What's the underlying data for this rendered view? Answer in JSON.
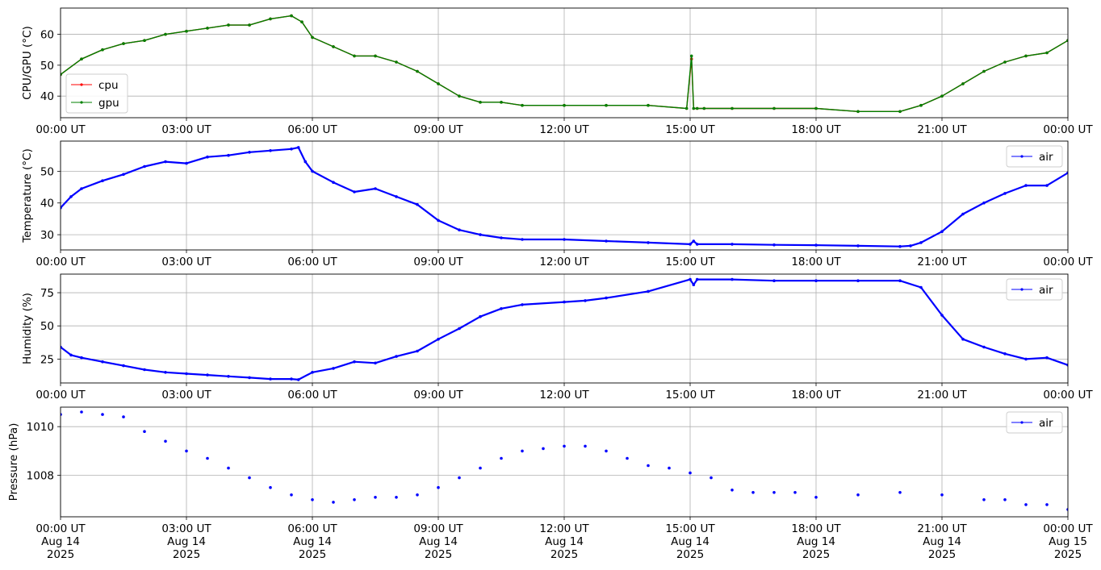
{
  "chart_data": [
    {
      "type": "line",
      "ylabel": "CPU/GPU (°C)",
      "ylim": [
        33,
        68.5
      ],
      "yticks": [
        40,
        50,
        60
      ],
      "grid": true,
      "legend_position": "lower-left",
      "x_start": "2025-08-14T00:00Z",
      "x_end": "2025-08-15T00:00Z",
      "x_tick_labels": [
        "00:00 UT",
        "03:00 UT",
        "06:00 UT",
        "09:00 UT",
        "12:00 UT",
        "15:00 UT",
        "18:00 UT",
        "21:00 UT",
        "00:00 UT"
      ],
      "series": [
        {
          "name": "cpu",
          "color": "#ff0000",
          "times": [
            "00:00",
            "00:30",
            "01:00",
            "01:30",
            "02:00",
            "02:30",
            "03:00",
            "03:30",
            "04:00",
            "04:30",
            "05:00",
            "05:30",
            "05:45",
            "06:00",
            "06:30",
            "07:00",
            "07:30",
            "08:00",
            "08:30",
            "09:00",
            "09:30",
            "10:00",
            "10:30",
            "11:00",
            "12:00",
            "13:00",
            "14:00",
            "14:55",
            "15:02",
            "15:05",
            "15:10",
            "15:20",
            "16:00",
            "17:00",
            "18:00",
            "19:00",
            "20:00",
            "20:30",
            "21:00",
            "21:30",
            "22:00",
            "22:30",
            "23:00",
            "23:30",
            "24:00"
          ],
          "values": [
            47,
            52,
            55,
            57,
            58,
            60,
            61,
            62,
            63,
            63,
            65,
            66,
            64,
            59,
            56,
            53,
            53,
            51,
            48,
            44,
            40,
            38,
            38,
            37,
            37,
            37,
            37,
            36,
            52,
            36,
            36,
            36,
            36,
            36,
            36,
            35,
            35,
            37,
            40,
            44,
            48,
            51,
            53,
            54,
            58
          ]
        },
        {
          "name": "gpu",
          "color": "#008000",
          "times": [
            "00:00",
            "00:30",
            "01:00",
            "01:30",
            "02:00",
            "02:30",
            "03:00",
            "03:30",
            "04:00",
            "04:30",
            "05:00",
            "05:30",
            "05:45",
            "06:00",
            "06:30",
            "07:00",
            "07:30",
            "08:00",
            "08:30",
            "09:00",
            "09:30",
            "10:00",
            "10:30",
            "11:00",
            "12:00",
            "13:00",
            "14:00",
            "14:55",
            "15:02",
            "15:05",
            "15:10",
            "15:20",
            "16:00",
            "17:00",
            "18:00",
            "19:00",
            "20:00",
            "20:30",
            "21:00",
            "21:30",
            "22:00",
            "22:30",
            "23:00",
            "23:30",
            "24:00"
          ],
          "values": [
            47,
            52,
            55,
            57,
            58,
            60,
            61,
            62,
            63,
            63,
            65,
            66,
            64,
            59,
            56,
            53,
            53,
            51,
            48,
            44,
            40,
            38,
            38,
            37,
            37,
            37,
            37,
            36,
            53,
            36,
            36,
            36,
            36,
            36,
            36,
            35,
            35,
            37,
            40,
            44,
            48,
            51,
            53,
            54,
            58
          ]
        }
      ]
    },
    {
      "type": "line",
      "ylabel": "Temperature (°C)",
      "ylim": [
        25.2,
        59.5
      ],
      "yticks": [
        30,
        40,
        50
      ],
      "grid": true,
      "legend_position": "upper-right",
      "x_start": "2025-08-14T00:00Z",
      "x_end": "2025-08-15T00:00Z",
      "x_tick_labels": [
        "00:00 UT",
        "03:00 UT",
        "06:00 UT",
        "09:00 UT",
        "12:00 UT",
        "15:00 UT",
        "18:00 UT",
        "21:00 UT",
        "00:00 UT"
      ],
      "series": [
        {
          "name": "air",
          "color": "#0000ff",
          "times": [
            "00:00",
            "00:15",
            "00:30",
            "01:00",
            "01:30",
            "02:00",
            "02:30",
            "03:00",
            "03:30",
            "04:00",
            "04:30",
            "05:00",
            "05:30",
            "05:40",
            "05:50",
            "06:00",
            "06:30",
            "07:00",
            "07:30",
            "08:00",
            "08:30",
            "09:00",
            "09:30",
            "10:00",
            "10:30",
            "11:00",
            "12:00",
            "13:00",
            "14:00",
            "15:00",
            "15:05",
            "15:10",
            "16:00",
            "17:00",
            "18:00",
            "19:00",
            "20:00",
            "20:15",
            "20:30",
            "21:00",
            "21:30",
            "22:00",
            "22:30",
            "23:00",
            "23:30",
            "24:00"
          ],
          "values": [
            38.5,
            42,
            44.5,
            47,
            49,
            51.5,
            53,
            52.5,
            54.5,
            55,
            56,
            56.5,
            57,
            57.5,
            53,
            50,
            46.5,
            43.5,
            44.5,
            42,
            39.5,
            34.5,
            31.5,
            30,
            29,
            28.5,
            28.5,
            28,
            27.5,
            27,
            28,
            27,
            27,
            26.8,
            26.7,
            26.5,
            26.3,
            26.5,
            27.5,
            31,
            36.5,
            40,
            43,
            45.5,
            45.5,
            49.5
          ]
        }
      ]
    },
    {
      "type": "line",
      "ylabel": "Humidity (%)",
      "ylim": [
        7,
        89
      ],
      "yticks": [
        25,
        50,
        75
      ],
      "grid": true,
      "legend_position": "upper-right",
      "x_start": "2025-08-14T00:00Z",
      "x_end": "2025-08-15T00:00Z",
      "x_tick_labels": [
        "00:00 UT",
        "03:00 UT",
        "06:00 UT",
        "09:00 UT",
        "12:00 UT",
        "15:00 UT",
        "18:00 UT",
        "21:00 UT",
        "00:00 UT"
      ],
      "series": [
        {
          "name": "air",
          "color": "#0000ff",
          "times": [
            "00:00",
            "00:15",
            "00:30",
            "01:00",
            "01:30",
            "02:00",
            "02:30",
            "03:00",
            "03:30",
            "04:00",
            "04:30",
            "05:00",
            "05:30",
            "05:40",
            "06:00",
            "06:30",
            "07:00",
            "07:30",
            "08:00",
            "08:30",
            "09:00",
            "09:30",
            "10:00",
            "10:30",
            "11:00",
            "12:00",
            "12:30",
            "13:00",
            "14:00",
            "15:00",
            "15:05",
            "15:10",
            "16:00",
            "17:00",
            "18:00",
            "19:00",
            "20:00",
            "20:30",
            "21:00",
            "21:30",
            "22:00",
            "22:30",
            "23:00",
            "23:30",
            "24:00"
          ],
          "values": [
            34,
            28,
            26,
            23,
            20,
            17,
            15,
            14,
            13,
            12,
            11,
            10,
            10,
            9.5,
            15,
            18,
            23,
            22,
            27,
            31,
            40,
            48,
            57,
            63,
            66,
            68,
            69,
            71,
            76,
            85,
            81,
            85,
            85,
            84,
            84,
            84,
            84,
            79,
            58,
            40,
            34,
            29,
            25,
            26,
            20.5
          ]
        }
      ]
    },
    {
      "type": "scatter",
      "ylabel": "Pressure (hPa)",
      "ylim": [
        1006.3,
        1010.8
      ],
      "yticks": [
        1008,
        1010
      ],
      "grid": true,
      "legend_position": "upper-right",
      "x_start": "2025-08-14T00:00Z",
      "x_end": "2025-08-15T00:00Z",
      "x_tick_labels": [
        [
          "00:00 UT",
          "Aug 14",
          "2025"
        ],
        [
          "03:00 UT",
          "Aug 14",
          "2025"
        ],
        [
          "06:00 UT",
          "Aug 14",
          "2025"
        ],
        [
          "09:00 UT",
          "Aug 14",
          "2025"
        ],
        [
          "12:00 UT",
          "Aug 14",
          "2025"
        ],
        [
          "15:00 UT",
          "Aug 14",
          "2025"
        ],
        [
          "18:00 UT",
          "Aug 14",
          "2025"
        ],
        [
          "21:00 UT",
          "Aug 14",
          "2025"
        ],
        [
          "00:00 UT",
          "Aug 15",
          "2025"
        ]
      ],
      "series": [
        {
          "name": "air",
          "color": "#0000ff",
          "times": [
            "00:00",
            "00:30",
            "01:00",
            "01:30",
            "02:00",
            "02:30",
            "03:00",
            "03:30",
            "04:00",
            "04:30",
            "05:00",
            "05:30",
            "06:00",
            "06:30",
            "07:00",
            "07:30",
            "08:00",
            "08:30",
            "09:00",
            "09:30",
            "10:00",
            "10:30",
            "11:00",
            "11:30",
            "12:00",
            "12:30",
            "13:00",
            "13:30",
            "14:00",
            "14:30",
            "15:00",
            "15:30",
            "16:00",
            "16:30",
            "17:00",
            "17:30",
            "18:00",
            "19:00",
            "20:00",
            "21:00",
            "22:00",
            "22:30",
            "23:00",
            "23:30",
            "24:00"
          ],
          "values": [
            1010.5,
            1010.6,
            1010.5,
            1010.4,
            1009.8,
            1009.4,
            1009.0,
            1008.7,
            1008.3,
            1007.9,
            1007.5,
            1007.2,
            1007.0,
            1006.9,
            1007.0,
            1007.1,
            1007.1,
            1007.2,
            1007.5,
            1007.9,
            1008.3,
            1008.7,
            1009.0,
            1009.1,
            1009.2,
            1009.2,
            1009.0,
            1008.7,
            1008.4,
            1008.3,
            1008.1,
            1007.9,
            1007.4,
            1007.3,
            1007.3,
            1007.3,
            1007.1,
            1007.2,
            1007.3,
            1007.2,
            1007.0,
            1007.0,
            1006.8,
            1006.8,
            1006.6
          ]
        }
      ]
    }
  ]
}
